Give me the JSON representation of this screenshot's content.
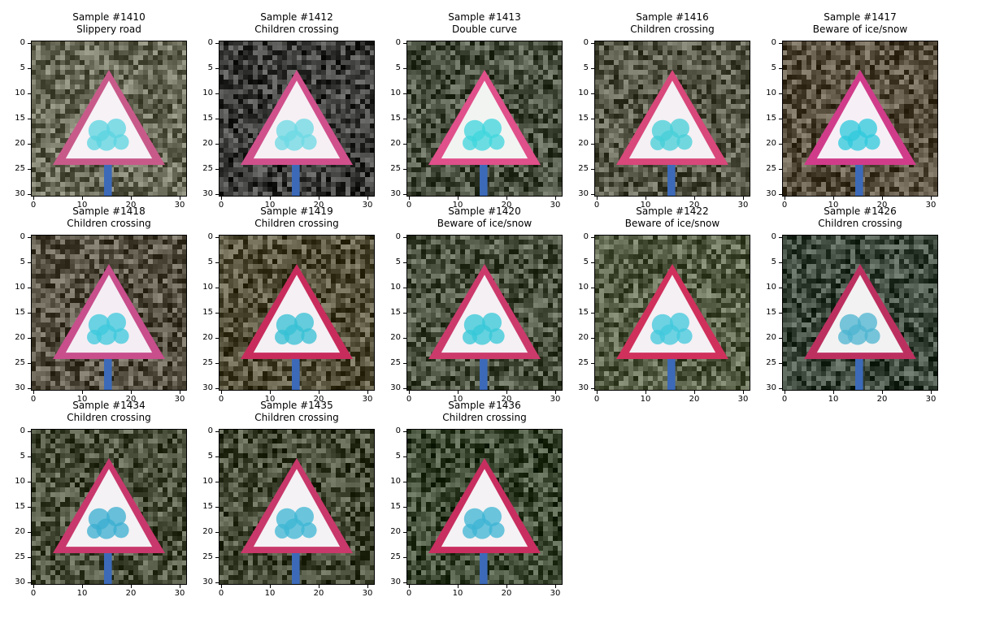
{
  "chart_data": [
    {
      "type": "heatmap",
      "title": "Sample #1410",
      "subtitle": "Slippery road",
      "bg": "#6a6a58",
      "sign": {
        "border": "#c85a8a",
        "fill": "#f6f2f6",
        "symbol": "#59d4e0"
      },
      "xticks": [
        0,
        10,
        20,
        30
      ],
      "yticks": [
        0,
        5,
        10,
        15,
        20,
        25,
        30
      ],
      "xlim": [
        0,
        31
      ],
      "ylim": [
        31,
        0
      ]
    },
    {
      "type": "heatmap",
      "title": "Sample #1412",
      "subtitle": "Children crossing",
      "bg": "#3c3c3a",
      "sign": {
        "border": "#d0508c",
        "fill": "#f6f0f4",
        "symbol": "#6bd9e4"
      },
      "xticks": [
        0,
        10,
        20,
        30
      ],
      "yticks": [
        0,
        5,
        10,
        15,
        20,
        25,
        30
      ],
      "xlim": [
        0,
        31
      ],
      "ylim": [
        31,
        0
      ]
    },
    {
      "type": "heatmap",
      "title": "Sample #1413",
      "subtitle": "Double curve",
      "bg": "#4a5040",
      "sign": {
        "border": "#e0508a",
        "fill": "#f2f4f2",
        "symbol": "#3ed6dc"
      },
      "xticks": [
        0,
        10,
        20,
        30
      ],
      "yticks": [
        0,
        5,
        10,
        15,
        20,
        25,
        30
      ],
      "xlim": [
        0,
        31
      ],
      "ylim": [
        31,
        0
      ]
    },
    {
      "type": "heatmap",
      "title": "Sample #1416",
      "subtitle": "Children crossing",
      "bg": "#585848",
      "sign": {
        "border": "#d8487a",
        "fill": "#f4f0f4",
        "symbol": "#46cfd8"
      },
      "xticks": [
        0,
        10,
        20,
        30
      ],
      "yticks": [
        0,
        5,
        10,
        15,
        20,
        25,
        30
      ],
      "xlim": [
        0,
        31
      ],
      "ylim": [
        31,
        0
      ]
    },
    {
      "type": "heatmap",
      "title": "Sample #1417",
      "subtitle": "Beware of ice/snow",
      "bg": "#5a5040",
      "sign": {
        "border": "#d03c8a",
        "fill": "#f6f0f6",
        "symbol": "#2ecadc"
      },
      "xticks": [
        0,
        10,
        20,
        30
      ],
      "yticks": [
        0,
        5,
        10,
        15,
        20,
        25,
        30
      ],
      "xlim": [
        0,
        31
      ],
      "ylim": [
        31,
        0
      ]
    },
    {
      "type": "heatmap",
      "title": "Sample #1418",
      "subtitle": "Children crossing",
      "bg": "#585244",
      "sign": {
        "border": "#c84e8c",
        "fill": "#f4eef4",
        "symbol": "#3cc8dc"
      },
      "xticks": [
        0,
        10,
        20,
        30
      ],
      "yticks": [
        0,
        5,
        10,
        15,
        20,
        25,
        30
      ],
      "xlim": [
        0,
        31
      ],
      "ylim": [
        31,
        0
      ]
    },
    {
      "type": "heatmap",
      "title": "Sample #1419",
      "subtitle": "Children crossing",
      "bg": "#54503a",
      "sign": {
        "border": "#c82c5c",
        "fill": "#f4f0f4",
        "symbol": "#34c0d4"
      },
      "xticks": [
        0,
        10,
        20,
        30
      ],
      "yticks": [
        0,
        5,
        10,
        15,
        20,
        25,
        30
      ],
      "xlim": [
        0,
        31
      ],
      "ylim": [
        31,
        0
      ]
    },
    {
      "type": "heatmap",
      "title": "Sample #1420",
      "subtitle": "Beware of ice/snow",
      "bg": "#4c5240",
      "sign": {
        "border": "#cc3a6c",
        "fill": "#f4f0f4",
        "symbol": "#36c8d8"
      },
      "xticks": [
        0,
        10,
        20,
        30
      ],
      "yticks": [
        0,
        5,
        10,
        15,
        20,
        25,
        30
      ],
      "xlim": [
        0,
        31
      ],
      "ylim": [
        31,
        0
      ]
    },
    {
      "type": "heatmap",
      "title": "Sample #1422",
      "subtitle": "Beware of ice/snow",
      "bg": "#586048",
      "sign": {
        "border": "#d0305c",
        "fill": "#f4f0f4",
        "symbol": "#40c8dc"
      },
      "xticks": [
        0,
        10,
        20,
        30
      ],
      "yticks": [
        0,
        5,
        10,
        15,
        20,
        25,
        30
      ],
      "xlim": [
        0,
        31
      ],
      "ylim": [
        31,
        0
      ]
    },
    {
      "type": "heatmap",
      "title": "Sample #1426",
      "subtitle": "Children crossing",
      "bg": "#3e4a3e",
      "sign": {
        "border": "#bc3060",
        "fill": "#f2f2f2",
        "symbol": "#4cb4d0"
      },
      "xticks": [
        0,
        10,
        20,
        30
      ],
      "yticks": [
        0,
        5,
        10,
        15,
        20,
        25,
        30
      ],
      "xlim": [
        0,
        31
      ],
      "ylim": [
        31,
        0
      ]
    },
    {
      "type": "heatmap",
      "title": "Sample #1434",
      "subtitle": "Children crossing",
      "bg": "#4a503c",
      "sign": {
        "border": "#c8386c",
        "fill": "#f4f2f4",
        "symbol": "#3aaed0"
      },
      "xticks": [
        0,
        10,
        20,
        30
      ],
      "yticks": [
        0,
        5,
        10,
        15,
        20,
        25,
        30
      ],
      "xlim": [
        0,
        31
      ],
      "ylim": [
        31,
        0
      ]
    },
    {
      "type": "heatmap",
      "title": "Sample #1435",
      "subtitle": "Children crossing",
      "bg": "#444a36",
      "sign": {
        "border": "#c8386a",
        "fill": "#f4f2f4",
        "symbol": "#3cb6d4"
      },
      "xticks": [
        0,
        10,
        20,
        30
      ],
      "yticks": [
        0,
        5,
        10,
        15,
        20,
        25,
        30
      ],
      "xlim": [
        0,
        31
      ],
      "ylim": [
        31,
        0
      ]
    },
    {
      "type": "heatmap",
      "title": "Sample #1436",
      "subtitle": "Children crossing",
      "bg": "#3e4a34",
      "sign": {
        "border": "#c82e60",
        "fill": "#f4f2f4",
        "symbol": "#3cb4d4"
      },
      "xticks": [
        0,
        10,
        20,
        30
      ],
      "yticks": [
        0,
        5,
        10,
        15,
        20,
        25,
        30
      ],
      "xlim": [
        0,
        31
      ],
      "ylim": [
        31,
        0
      ]
    }
  ]
}
